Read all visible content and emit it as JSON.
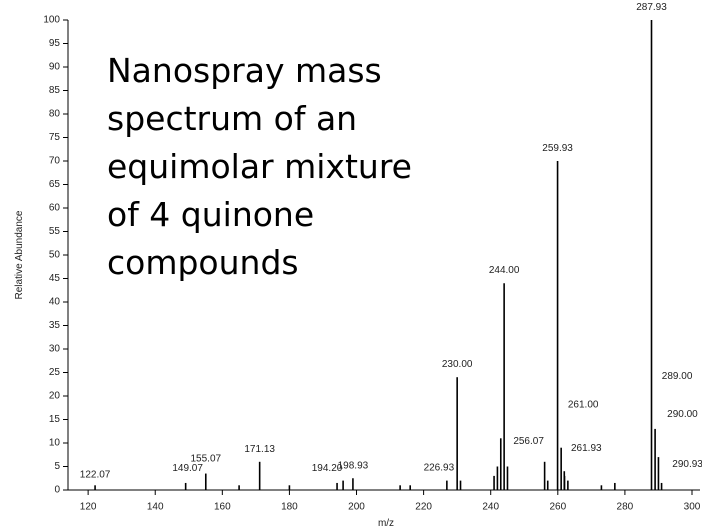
{
  "chart_data": {
    "type": "stick",
    "xlabel": "m/z",
    "ylabel": "Relative Abundance",
    "annotation": [
      "Nanospray mass",
      "spectrum of an",
      "equimolar mixture",
      "of 4 quinone",
      "compounds"
    ],
    "x": [
      122.07,
      149.07,
      155.07,
      171.13,
      194.2,
      198.93,
      226.93,
      230.0,
      244.0,
      256.07,
      259.93,
      261.0,
      261.93,
      287.93,
      289.0,
      290.0,
      290.93,
      165,
      180,
      196,
      213,
      216,
      231,
      241,
      242,
      243,
      245,
      257,
      262,
      263,
      273,
      277
    ],
    "values": [
      1,
      1.5,
      3.5,
      6,
      1.5,
      2.5,
      2,
      24,
      44,
      6,
      70,
      9,
      4,
      100,
      13,
      7,
      1.5,
      1,
      1,
      2,
      1,
      1,
      2,
      3,
      5,
      11,
      5,
      2,
      3,
      2,
      1,
      1.5
    ],
    "peak_labels": [
      "122.07",
      "149.07",
      "155.07",
      "171.13",
      "194.20",
      "198.93",
      "226.93",
      "230.00",
      "244.00",
      "256.07",
      "259.93",
      "261.00",
      "261.93",
      "287.93",
      "289.00",
      "290.00",
      "290.93",
      null,
      null,
      null,
      null,
      null,
      null,
      null,
      null,
      null,
      null,
      null,
      null,
      null,
      null,
      null
    ],
    "color": "#000000",
    "xlim": [
      114,
      300
    ],
    "ylim": [
      0,
      100
    ],
    "xticks": [
      120,
      140,
      160,
      180,
      200,
      220,
      240,
      260,
      280,
      300
    ],
    "yticks": [
      0,
      5,
      10,
      15,
      20,
      25,
      30,
      35,
      40,
      45,
      50,
      55,
      60,
      65,
      70,
      75,
      80,
      85,
      90,
      95,
      100
    ]
  }
}
